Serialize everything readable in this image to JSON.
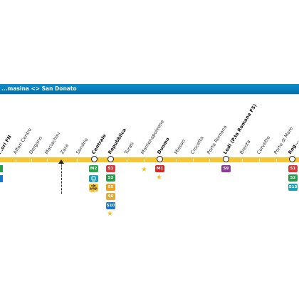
{
  "header": {
    "title": "...masina <> San Donato"
  },
  "colors": {
    "header_blue": "#0a8fd0",
    "line_yellow": "#f4c535",
    "m1_red": "#d42a2a",
    "m2_green": "#2aa54a",
    "m3_yellow": "#f4c535",
    "s1": "#d93a3a",
    "s2": "#2a9a4a",
    "s5": "#f0a020",
    "s6": "#e8a838",
    "s9": "#8a3a9a",
    "s10": "#1a78c8",
    "passante_teal": "#1aa0b8",
    "star": "#f2c230"
  },
  "stations": [
    {
      "name": "...ori FN",
      "bold": true
    },
    {
      "name": "Affori Centro",
      "bold": false
    },
    {
      "name": "Dergano",
      "bold": false
    },
    {
      "name": "Maciachini",
      "bold": false
    },
    {
      "name": "Zara",
      "bold": false
    },
    {
      "name": "Sondrio",
      "bold": false
    },
    {
      "name": "Centrale",
      "bold": true
    },
    {
      "name": "Repubblica",
      "bold": true
    },
    {
      "name": "Turati",
      "bold": false
    },
    {
      "name": "Montenapoleone",
      "bold": false
    },
    {
      "name": "Duomo",
      "bold": true
    },
    {
      "name": "Missori",
      "bold": false
    },
    {
      "name": "Crocetta",
      "bold": false
    },
    {
      "name": "Porta Romana",
      "bold": false
    },
    {
      "name": "Lodi (P.ta Romana FS)",
      "bold": true
    },
    {
      "name": "Brenta",
      "bold": false
    },
    {
      "name": "Corvetto",
      "bold": false
    },
    {
      "name": "Porto di Mare",
      "bold": false
    },
    {
      "name": "Rog...",
      "bold": true
    }
  ],
  "badges": {
    "centrale": [
      "M2",
      "passante-icon",
      "airport-icon"
    ],
    "centrale_airport_label": "MXP",
    "repubblica": [
      "S1",
      "S2",
      "S5",
      "S6",
      "S10"
    ],
    "duomo": [
      "M1"
    ],
    "lodi": [
      "S9"
    ],
    "rogoredo": [
      "S1",
      "S2",
      "S13"
    ]
  }
}
